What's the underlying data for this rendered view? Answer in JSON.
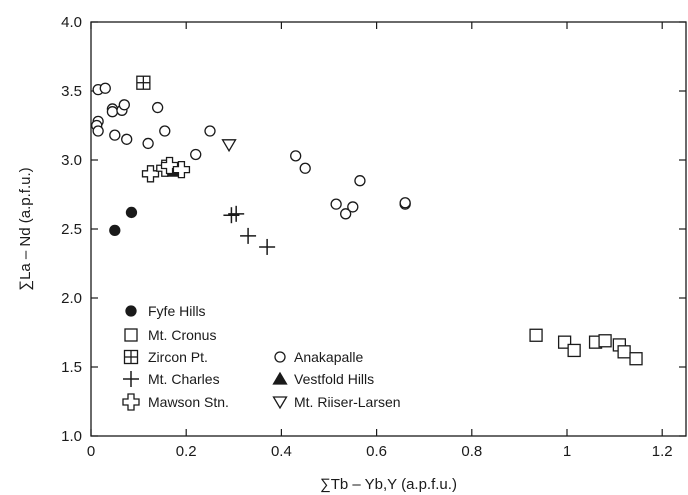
{
  "chart_data": {
    "type": "scatter",
    "xlabel": "∑Tb – Yb,Y (a.p.f.u.)",
    "ylabel": "∑La – Nd (a.p.f.u.)",
    "xlim": [
      0,
      1.25
    ],
    "ylim": [
      1.0,
      4.0
    ],
    "xticks": [
      0,
      0.2,
      0.4,
      0.6,
      0.8,
      1,
      1.2
    ],
    "xtick_labels": [
      "0",
      "0.2",
      "0.4",
      "0.6",
      "0.8",
      "1",
      "1.2"
    ],
    "yticks": [
      1.0,
      1.5,
      2.0,
      2.5,
      3.0,
      3.5,
      4.0
    ],
    "ytick_labels": [
      "1.0",
      "1.5",
      "2.0",
      "2.5",
      "3.0",
      "3.5",
      "4.0"
    ],
    "grid": false,
    "legend_placement": "bottom-left",
    "series": [
      {
        "name": "Fyfe Hills",
        "marker": "filled-circle",
        "points": [
          [
            0.05,
            2.49
          ],
          [
            0.085,
            2.62
          ]
        ]
      },
      {
        "name": "Mt. Cronus",
        "marker": "open-square",
        "points": [
          [
            0.935,
            1.73
          ],
          [
            0.995,
            1.68
          ],
          [
            1.015,
            1.62
          ],
          [
            1.06,
            1.68
          ],
          [
            1.08,
            1.69
          ],
          [
            1.11,
            1.66
          ],
          [
            1.12,
            1.61
          ],
          [
            1.145,
            1.56
          ]
        ]
      },
      {
        "name": "Zircon Pt.",
        "marker": "boxed-plus",
        "points": [
          [
            0.11,
            3.56
          ]
        ]
      },
      {
        "name": "Anakapalle",
        "marker": "open-circle",
        "points": [
          [
            0.015,
            3.51
          ],
          [
            0.03,
            3.52
          ],
          [
            0.015,
            3.28
          ],
          [
            0.012,
            3.25
          ],
          [
            0.015,
            3.21
          ],
          [
            0.045,
            3.37
          ],
          [
            0.045,
            3.35
          ],
          [
            0.065,
            3.36
          ],
          [
            0.07,
            3.4
          ],
          [
            0.05,
            3.18
          ],
          [
            0.075,
            3.15
          ],
          [
            0.12,
            3.12
          ],
          [
            0.14,
            3.38
          ],
          [
            0.155,
            3.21
          ],
          [
            0.25,
            3.21
          ],
          [
            0.22,
            3.04
          ],
          [
            0.43,
            3.03
          ],
          [
            0.45,
            2.94
          ],
          [
            0.515,
            2.68
          ],
          [
            0.535,
            2.61
          ],
          [
            0.55,
            2.66
          ],
          [
            0.565,
            2.85
          ],
          [
            0.66,
            2.68
          ],
          [
            0.66,
            2.69
          ]
        ]
      },
      {
        "name": "Mt. Charles",
        "marker": "plus",
        "points": [
          [
            0.295,
            2.6
          ],
          [
            0.305,
            2.61
          ],
          [
            0.33,
            2.45
          ],
          [
            0.37,
            2.37
          ]
        ]
      },
      {
        "name": "Vestfold Hills",
        "marker": "filled-triangle",
        "points": [
          [
            0.175,
            2.92
          ]
        ]
      },
      {
        "name": "Mawson Stn.",
        "marker": "open-cross",
        "points": [
          [
            0.125,
            2.9
          ],
          [
            0.155,
            2.94
          ],
          [
            0.165,
            2.96
          ],
          [
            0.19,
            2.93
          ]
        ]
      },
      {
        "name": "Mt. Riiser-Larsen",
        "marker": "open-down-triangle",
        "points": [
          [
            0.29,
            3.11
          ]
        ]
      }
    ]
  }
}
